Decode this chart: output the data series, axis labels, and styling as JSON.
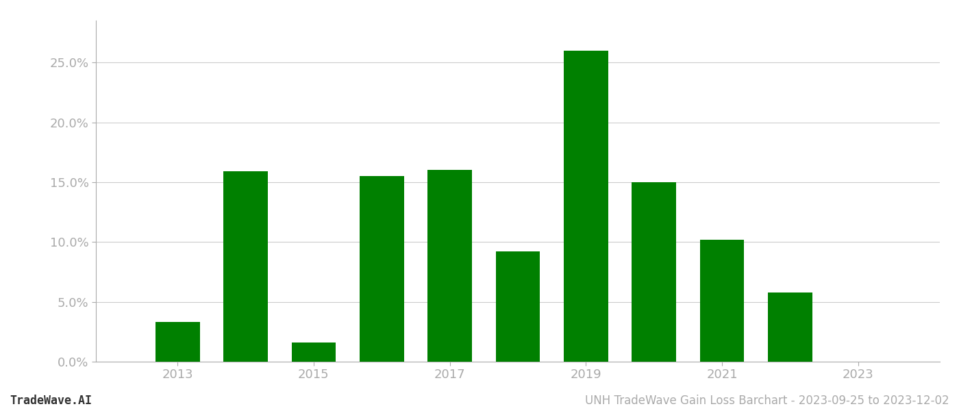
{
  "years": [
    2013,
    2014,
    2015,
    2016,
    2017,
    2018,
    2019,
    2020,
    2021,
    2022,
    2023
  ],
  "values": [
    0.033,
    0.159,
    0.016,
    0.155,
    0.16,
    0.092,
    0.26,
    0.15,
    0.102,
    0.058,
    0.0
  ],
  "bar_color": "#008000",
  "background_color": "#ffffff",
  "ylabel_ticks": [
    0.0,
    0.05,
    0.1,
    0.15,
    0.2,
    0.25
  ],
  "ytick_labels": [
    "0.0%",
    "5.0%",
    "10.0%",
    "15.0%",
    "20.0%",
    "25.0%"
  ],
  "xtick_years": [
    2013,
    2015,
    2017,
    2019,
    2021,
    2023
  ],
  "footer_left": "TradeWave.AI",
  "footer_right": "UNH TradeWave Gain Loss Barchart - 2023-09-25 to 2023-12-02",
  "grid_color": "#cccccc",
  "spine_color": "#aaaaaa",
  "text_color": "#aaaaaa",
  "ylim": [
    0,
    0.285
  ],
  "xlim_left": 2011.8,
  "xlim_right": 2024.2,
  "bar_width": 0.65
}
